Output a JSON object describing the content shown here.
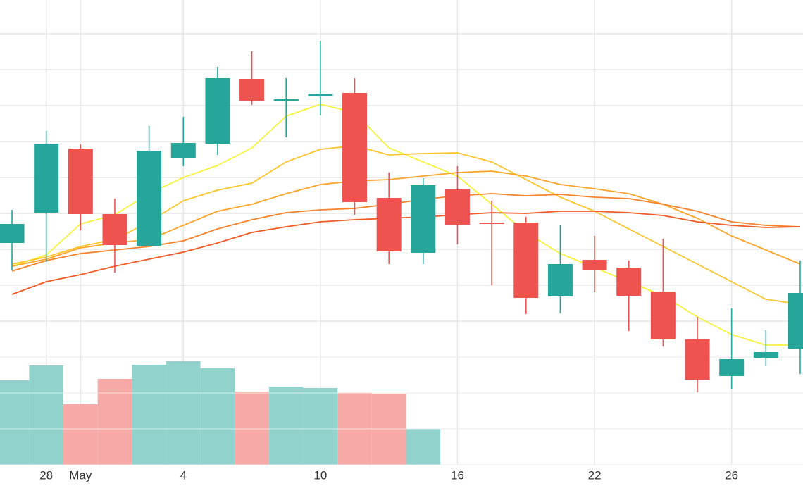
{
  "chart_data": {
    "type": "candlestick",
    "categories": [
      null,
      "28",
      "May",
      null,
      null,
      "4",
      null,
      null,
      null,
      "10",
      null,
      null,
      null,
      "16",
      null,
      null,
      null,
      "22",
      null,
      null,
      null,
      "26",
      null,
      null
    ],
    "open": [
      315,
      358,
      449,
      356,
      311,
      436,
      456,
      548,
      518,
      523,
      528,
      379,
      301,
      391,
      344,
      344,
      239,
      291,
      280,
      246,
      178,
      126,
      152,
      165
    ],
    "high": [
      362,
      474,
      455,
      378,
      481,
      494,
      565,
      587,
      549,
      602,
      549,
      415,
      407,
      424,
      375,
      352,
      340,
      325,
      290,
      321,
      210,
      222,
      191,
      290
    ],
    "low": [
      276,
      288,
      333,
      273,
      311,
      424,
      440,
      511,
      465,
      496,
      355,
      285,
      285,
      313,
      255,
      214,
      215,
      245,
      190,
      168,
      103,
      108,
      140,
      129
    ],
    "close": [
      342,
      456,
      356,
      312,
      446,
      457,
      549,
      517,
      519,
      527,
      373,
      303,
      397,
      341,
      342,
      237,
      285,
      276,
      240,
      178,
      121,
      150,
      160,
      244
    ],
    "volume": [
      120,
      141,
      86,
      122,
      142,
      147,
      137,
      104,
      111,
      109,
      102,
      101,
      51,
      null,
      null,
      null,
      null,
      null,
      null,
      null,
      null,
      null,
      null,
      null
    ],
    "up_color": "#26a69a",
    "down_color": "#ef5350",
    "volume_up_color": "#92d2cc",
    "volume_down_color": "#f6aaa7",
    "series": [
      {
        "color": "#f7f23c",
        "values": [
          282,
          298,
          342,
          355,
          385,
          408,
          425,
          450,
          495,
          512,
          500,
          450,
          430,
          410,
          370,
          330,
          300,
          280,
          260,
          240,
          210,
          185,
          170,
          170
        ]
      },
      {
        "color": "#fcc52c",
        "values": [
          285,
          295,
          310,
          320,
          345,
          375,
          390,
          400,
          430,
          448,
          453,
          440,
          442,
          443,
          430,
          405,
          380,
          360,
          335,
          310,
          285,
          260,
          235,
          228
        ]
      },
      {
        "color": "#fba428",
        "values": [
          282,
          292,
          308,
          315,
          320,
          340,
          360,
          370,
          385,
          398,
          403,
          405,
          410,
          415,
          417,
          410,
          398,
          392,
          385,
          370,
          350,
          325,
          305,
          285
        ]
      },
      {
        "color": "#f6822a",
        "values": [
          275,
          290,
          300,
          305,
          310,
          318,
          335,
          348,
          358,
          362,
          364,
          370,
          377,
          382,
          385,
          382,
          384,
          380,
          378,
          370,
          360,
          345,
          340,
          338
        ]
      },
      {
        "color": "#f15a24",
        "values": [
          242,
          260,
          270,
          282,
          292,
          302,
          315,
          330,
          338,
          345,
          348,
          350,
          352,
          355,
          358,
          357,
          360,
          360,
          358,
          354,
          345,
          340,
          337,
          338
        ]
      }
    ],
    "ylim": [
      0,
      660
    ],
    "yticks": [
      0,
      51,
      102,
      153,
      204,
      255,
      306,
      357,
      408,
      459,
      510,
      561,
      612
    ],
    "grid": true
  }
}
